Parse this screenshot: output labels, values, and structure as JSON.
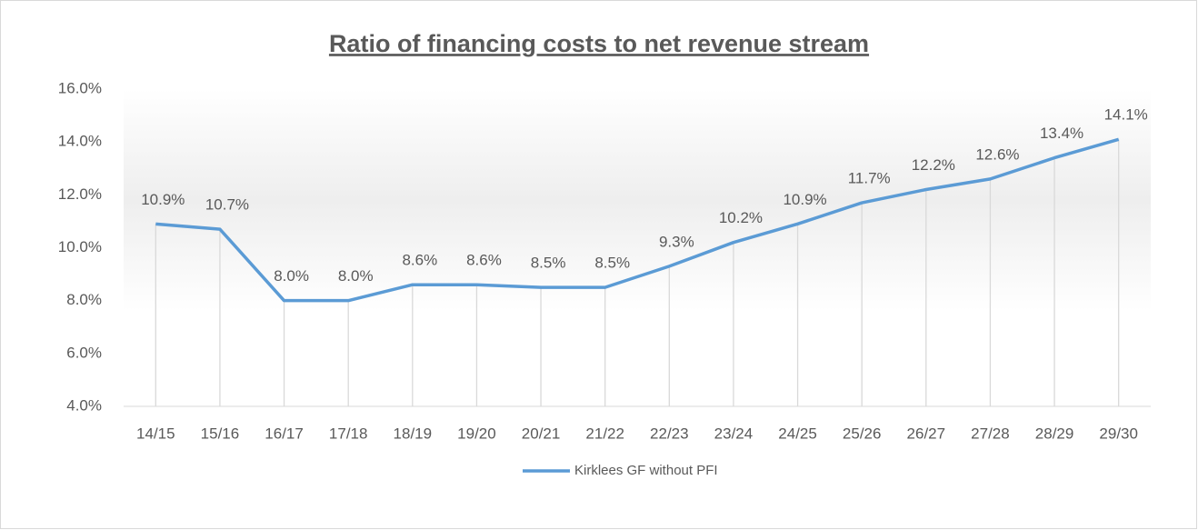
{
  "chart_data": {
    "type": "line",
    "title": "Ratio of financing costs to net revenue stream",
    "categories": [
      "14/15",
      "15/16",
      "16/17",
      "17/18",
      "18/19",
      "19/20",
      "20/21",
      "21/22",
      "22/23",
      "23/24",
      "24/25",
      "25/26",
      "26/27",
      "27/28",
      "28/29",
      "29/30"
    ],
    "series": [
      {
        "name": "Kirklees GF without PFI",
        "color": "#5b9bd5",
        "values": [
          10.9,
          10.7,
          8.0,
          8.0,
          8.6,
          8.6,
          8.5,
          8.5,
          9.3,
          10.2,
          10.9,
          11.7,
          12.2,
          12.6,
          13.4,
          14.1
        ],
        "value_labels": [
          "10.9%",
          "10.7%",
          "8.0%",
          "8.0%",
          "8.6%",
          "8.6%",
          "8.5%",
          "8.5%",
          "9.3%",
          "10.2%",
          "10.9%",
          "11.7%",
          "12.2%",
          "12.6%",
          "13.4%",
          "14.1%"
        ]
      }
    ],
    "ylim": [
      4,
      16
    ],
    "yticks": [
      {
        "value": 4,
        "label": "4.0%"
      },
      {
        "value": 6,
        "label": "6.0%"
      },
      {
        "value": 8,
        "label": "8.0%"
      },
      {
        "value": 10,
        "label": "10.0%"
      },
      {
        "value": 12,
        "label": "12.0%"
      },
      {
        "value": 14,
        "label": "14.0%"
      },
      {
        "value": 16,
        "label": "16.0%"
      }
    ],
    "drop_lines": true,
    "legend": "bottom"
  }
}
